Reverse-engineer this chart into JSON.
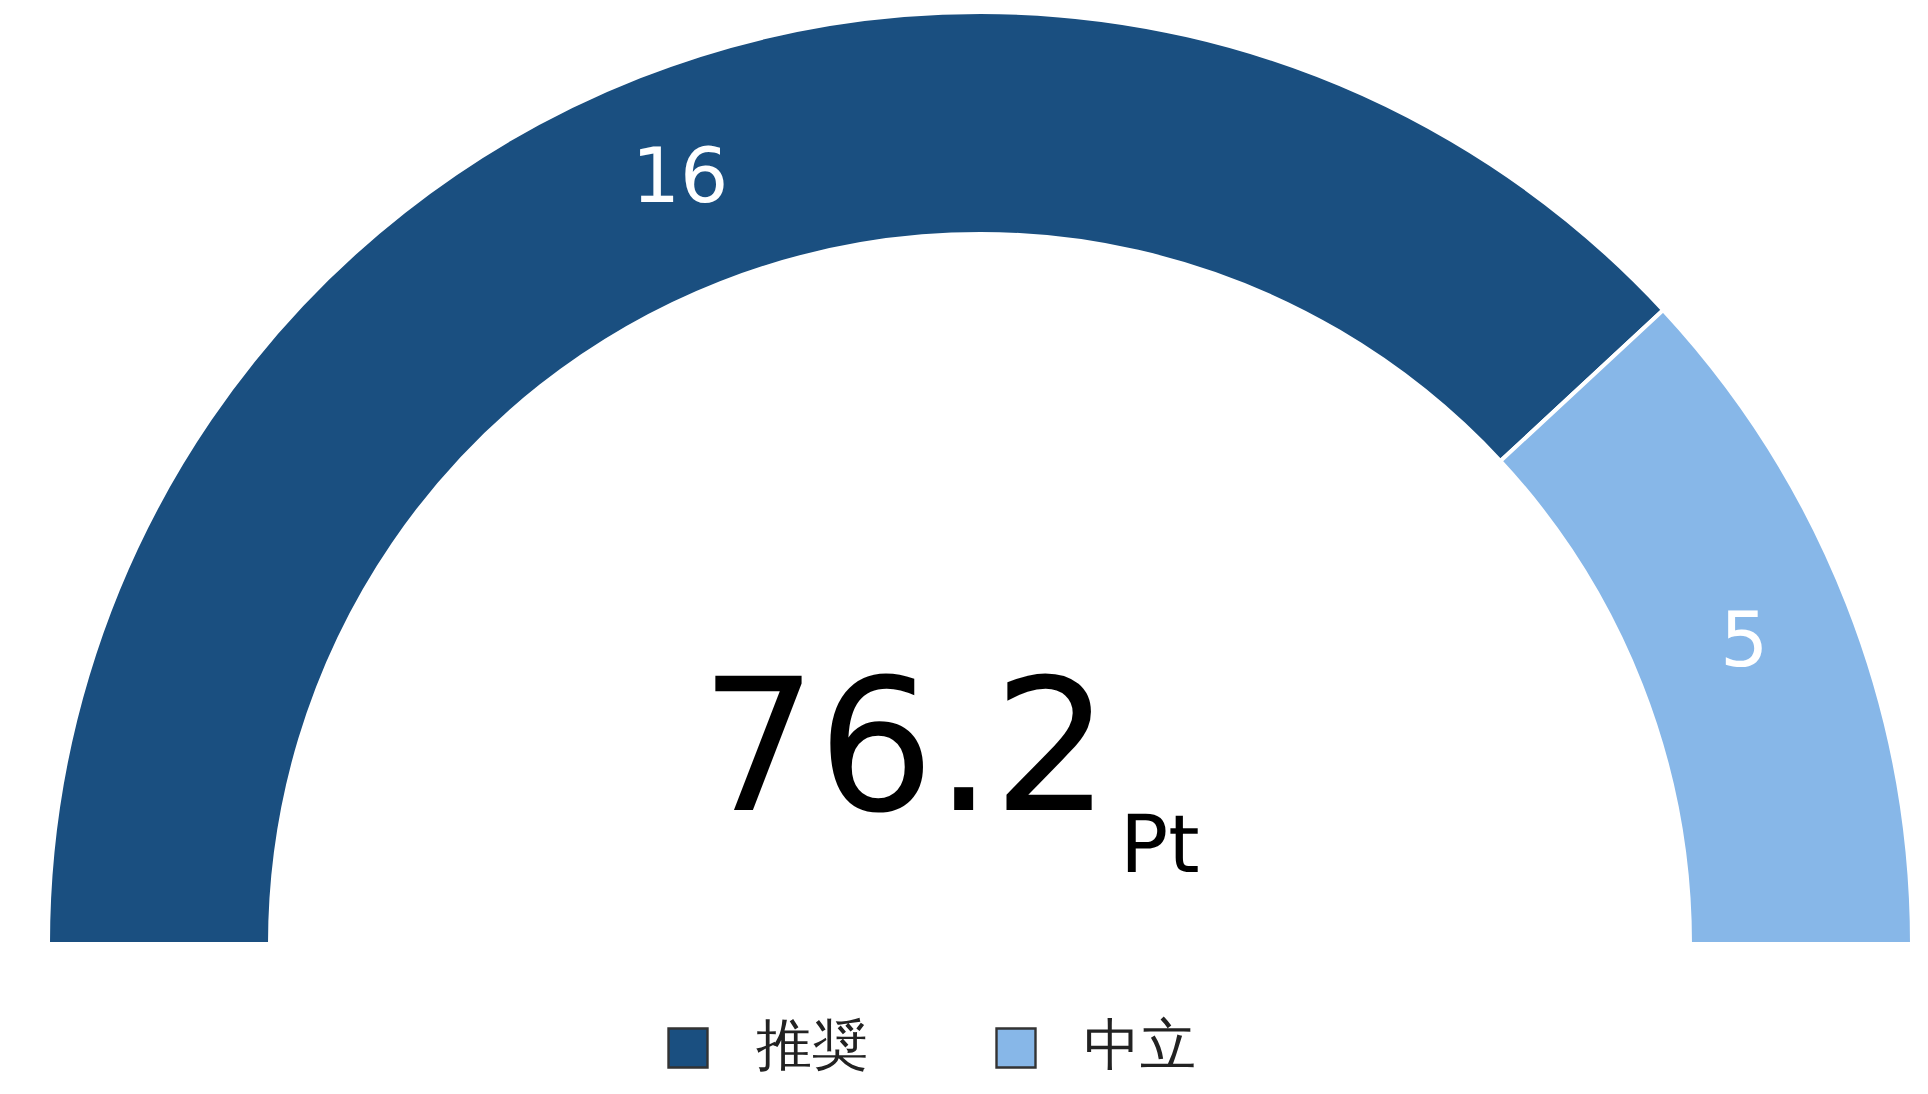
{
  "chart_data": {
    "type": "donut",
    "categories": [
      "推奨",
      "中立"
    ],
    "values": [
      16,
      5
    ],
    "colors": [
      "#1a4f80",
      "#87b7e8"
    ],
    "data_labels": true,
    "legend": "bottom",
    "annotations": [
      "76.2",
      "Pt"
    ]
  }
}
